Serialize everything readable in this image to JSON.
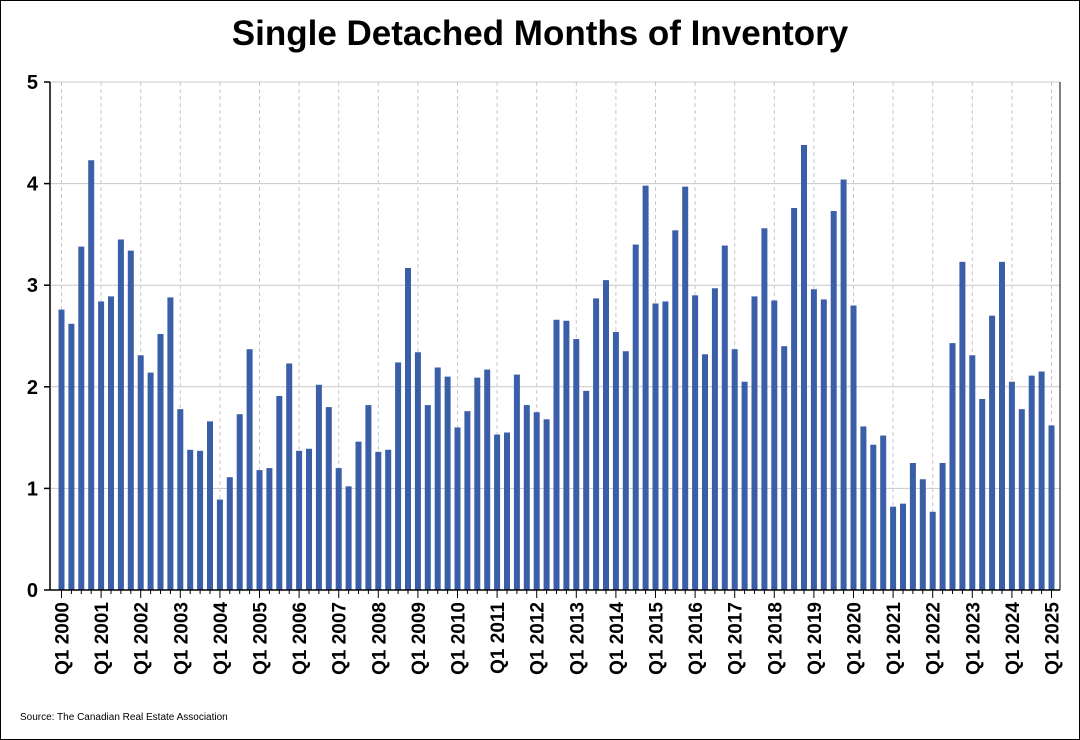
{
  "chart_data": {
    "type": "bar",
    "title": "Single Detached Months of Inventory",
    "xlabel": "",
    "ylabel": "",
    "ylim": [
      0,
      5
    ],
    "yticks": [
      0,
      1,
      2,
      3,
      4,
      5
    ],
    "xtick_labels": [
      "Q1 2000",
      "Q1 2001",
      "Q1 2002",
      "Q1 2003",
      "Q1 2004",
      "Q1 2005",
      "Q1 2006",
      "Q1 2007",
      "Q1 2008",
      "Q1 2009",
      "Q1 2010",
      "Q1 2011",
      "Q1 2012",
      "Q1 2013",
      "Q1 2014",
      "Q1 2015",
      "Q1 2016",
      "Q1 2017",
      "Q1 2018",
      "Q1 2019",
      "Q1 2020",
      "Q1 2021",
      "Q1 2022",
      "Q1 2023",
      "Q1 2024",
      "Q1 2025"
    ],
    "categories": [
      "Q1 2000",
      "Q2 2000",
      "Q3 2000",
      "Q4 2000",
      "Q1 2001",
      "Q2 2001",
      "Q3 2001",
      "Q4 2001",
      "Q1 2002",
      "Q2 2002",
      "Q3 2002",
      "Q4 2002",
      "Q1 2003",
      "Q2 2003",
      "Q3 2003",
      "Q4 2003",
      "Q1 2004",
      "Q2 2004",
      "Q3 2004",
      "Q4 2004",
      "Q1 2005",
      "Q2 2005",
      "Q3 2005",
      "Q4 2005",
      "Q1 2006",
      "Q2 2006",
      "Q3 2006",
      "Q4 2006",
      "Q1 2007",
      "Q2 2007",
      "Q3 2007",
      "Q4 2007",
      "Q1 2008",
      "Q2 2008",
      "Q3 2008",
      "Q4 2008",
      "Q1 2009",
      "Q2 2009",
      "Q3 2009",
      "Q4 2009",
      "Q1 2010",
      "Q2 2010",
      "Q3 2010",
      "Q4 2010",
      "Q1 2011",
      "Q2 2011",
      "Q3 2011",
      "Q4 2011",
      "Q1 2012",
      "Q2 2012",
      "Q3 2012",
      "Q4 2012",
      "Q1 2013",
      "Q2 2013",
      "Q3 2013",
      "Q4 2013",
      "Q1 2014",
      "Q2 2014",
      "Q3 2014",
      "Q4 2014",
      "Q1 2015",
      "Q2 2015",
      "Q3 2015",
      "Q4 2015",
      "Q1 2016",
      "Q2 2016",
      "Q3 2016",
      "Q4 2016",
      "Q1 2017",
      "Q2 2017",
      "Q3 2017",
      "Q4 2017",
      "Q1 2018",
      "Q2 2018",
      "Q3 2018",
      "Q4 2018",
      "Q1 2019",
      "Q2 2019",
      "Q3 2019",
      "Q4 2019",
      "Q1 2020",
      "Q2 2020",
      "Q3 2020",
      "Q4 2020",
      "Q1 2021",
      "Q2 2021",
      "Q3 2021",
      "Q4 2021",
      "Q1 2022",
      "Q2 2022",
      "Q3 2022",
      "Q4 2022",
      "Q1 2023",
      "Q2 2023",
      "Q3 2023",
      "Q4 2023",
      "Q1 2024",
      "Q2 2024",
      "Q3 2024",
      "Q4 2024",
      "Q1 2025"
    ],
    "series": [
      {
        "values": [
          2.76,
          2.62,
          3.38,
          4.23,
          2.84,
          2.89,
          3.45,
          3.34,
          2.31,
          2.14,
          2.52,
          2.88,
          1.78,
          1.38,
          1.37,
          1.66,
          0.89,
          1.11,
          1.73,
          2.37,
          1.18,
          1.2,
          1.91,
          2.23,
          1.37,
          1.39,
          2.02,
          1.8,
          1.2,
          1.02,
          1.46,
          1.82,
          1.36,
          1.38,
          2.24,
          3.17,
          2.34,
          1.82,
          2.19,
          2.1,
          1.6,
          1.76,
          2.09,
          2.17,
          1.53,
          1.55,
          2.12,
          1.82,
          1.75,
          1.68,
          2.66,
          2.65,
          2.47,
          1.96,
          2.87,
          3.05,
          2.54,
          2.35,
          3.4,
          3.98,
          2.82,
          2.84,
          3.54,
          3.97,
          2.9,
          2.32,
          2.97,
          3.39,
          2.37,
          2.05,
          2.89,
          3.56,
          2.85,
          2.4,
          3.76,
          4.38,
          2.96,
          2.86,
          3.73,
          4.04,
          2.8,
          1.61,
          1.43,
          1.52,
          0.82,
          0.85,
          1.25,
          1.09,
          0.77,
          1.25,
          2.43,
          3.23,
          2.31,
          1.88,
          2.7,
          3.23,
          2.05,
          1.78,
          2.11,
          2.15,
          1.62
        ]
      }
    ],
    "colors": {
      "bar": "#3a5ea8",
      "grid_h": "#c8c8c8",
      "grid_v": "#c8c8c8"
    },
    "grid": true,
    "source": "Source: The Canadian Real Estate Association"
  }
}
